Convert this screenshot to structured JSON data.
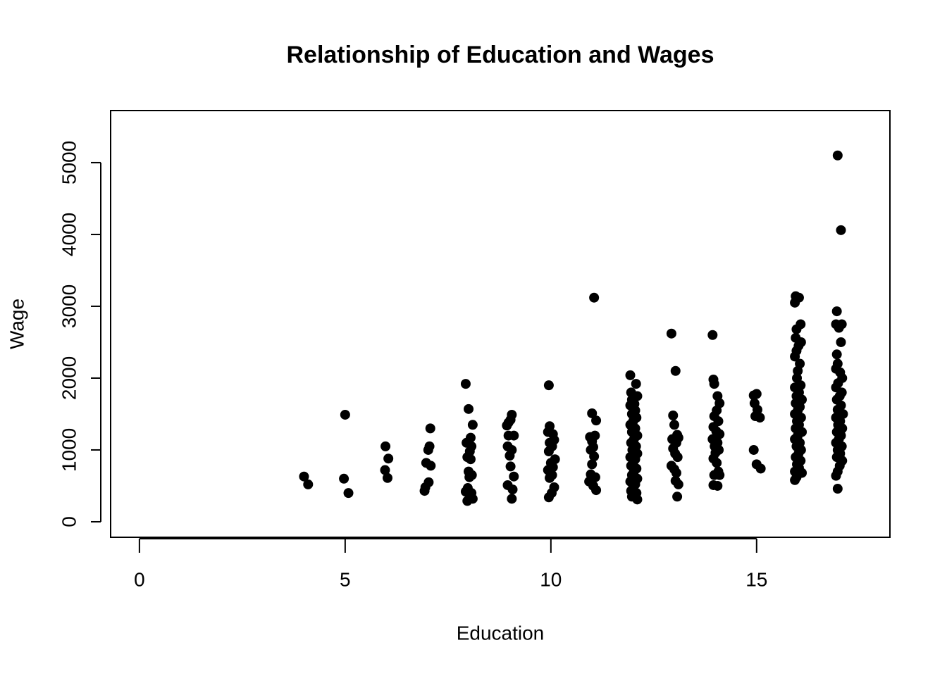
{
  "chart_data": {
    "type": "scatter",
    "title": "Relationship of Education and Wages",
    "x_label": "Education",
    "y_label": "Wage",
    "color": "#000000",
    "xlim": [
      -0.7,
      18.24
    ],
    "ylim": [
      -216,
      5725
    ],
    "xticks": [
      0,
      5,
      10,
      15
    ],
    "yticks": [
      0,
      1000,
      2000,
      3000,
      4000,
      5000
    ],
    "x": [
      4.0,
      4.1,
      5.0,
      4.97,
      5.08,
      5.98,
      6.05,
      5.97,
      6.03,
      7.07,
      7.05,
      7.02,
      6.97,
      7.08,
      7.03,
      6.95,
      6.93,
      7.93,
      8.0,
      8.1,
      8.05,
      7.95,
      8.07,
      8.03,
      7.97,
      8.05,
      8.0,
      8.08,
      8.02,
      7.98,
      7.93,
      8.07,
      8.1,
      7.97,
      9.05,
      9.02,
      8.97,
      8.93,
      9.1,
      8.97,
      8.95,
      9.05,
      9.0,
      9.02,
      9.1,
      8.95,
      9.07,
      9.05,
      9.95,
      9.97,
      10.05,
      9.93,
      10.08,
      9.97,
      10.03,
      9.95,
      10.1,
      10.0,
      10.05,
      9.93,
      10.03,
      9.97,
      10.08,
      10.02,
      9.95,
      11.05,
      11.0,
      11.1,
      11.07,
      10.95,
      11.0,
      11.03,
      10.97,
      11.05,
      11.0,
      10.97,
      11.08,
      10.93,
      11.03,
      11.1,
      11.93,
      12.07,
      11.95,
      12.1,
      11.97,
      12.03,
      11.93,
      12.05,
      11.97,
      12.08,
      12.0,
      11.93,
      12.05,
      11.97,
      12.1,
      12.02,
      11.95,
      12.07,
      11.98,
      12.1,
      11.93,
      12.05,
      12.0,
      11.95,
      12.08,
      12.02,
      11.97,
      12.1,
      11.93,
      12.05,
      12.0,
      11.95,
      12.08,
      11.97,
      12.1,
      12.93,
      13.03,
      12.97,
      13.0,
      13.07,
      12.95,
      13.05,
      13.1,
      12.97,
      13.02,
      13.08,
      12.93,
      13.0,
      13.05,
      13.03,
      13.1,
      13.07,
      13.93,
      13.95,
      13.97,
      14.05,
      14.1,
      14.03,
      13.97,
      14.07,
      13.95,
      14.02,
      14.1,
      13.93,
      14.05,
      13.98,
      14.08,
      14.0,
      13.95,
      14.03,
      14.07,
      13.97,
      14.1,
      13.95,
      14.05,
      14.93,
      15.0,
      14.95,
      15.02,
      14.97,
      15.08,
      14.93,
      15.0,
      15.1,
      15.95,
      16.03,
      15.93,
      16.07,
      15.97,
      15.95,
      16.08,
      16.02,
      15.97,
      15.93,
      16.05,
      16.0,
      15.98,
      16.07,
      15.93,
      16.03,
      15.97,
      16.1,
      15.95,
      16.05,
      16.0,
      15.93,
      16.08,
      15.98,
      16.03,
      15.95,
      16.1,
      16.0,
      15.93,
      16.05,
      15.97,
      16.08,
      16.02,
      15.95,
      16.07,
      15.98,
      16.03,
      15.93,
      16.1,
      15.97,
      15.93,
      16.97,
      17.05,
      16.95,
      16.93,
      17.07,
      17.0,
      17.05,
      16.95,
      16.97,
      16.93,
      17.03,
      17.08,
      16.98,
      16.93,
      17.07,
      17.02,
      16.95,
      17.05,
      16.97,
      17.1,
      16.93,
      17.03,
      16.98,
      17.08,
      16.95,
      17.05,
      17.0,
      16.93,
      17.07,
      16.97,
      17.03,
      16.95,
      17.08,
      17.02,
      16.97,
      16.93,
      16.97
    ],
    "y": [
      630,
      520,
      1490,
      600,
      400,
      1050,
      880,
      720,
      610,
      1300,
      1050,
      1000,
      820,
      780,
      550,
      480,
      430,
      1920,
      1570,
      1350,
      1170,
      1100,
      1050,
      980,
      900,
      870,
      700,
      650,
      620,
      470,
      420,
      400,
      320,
      290,
      1490,
      1420,
      1380,
      1340,
      1200,
      1200,
      1050,
      1000,
      920,
      770,
      630,
      510,
      450,
      320,
      1900,
      1330,
      1220,
      1250,
      1140,
      1100,
      1050,
      980,
      870,
      820,
      760,
      720,
      650,
      610,
      480,
      400,
      340,
      3120,
      1510,
      1410,
      1200,
      1180,
      1120,
      1040,
      1000,
      910,
      800,
      660,
      620,
      560,
      500,
      440,
      2040,
      1920,
      1800,
      1750,
      1700,
      1640,
      1620,
      1550,
      1500,
      1450,
      1400,
      1350,
      1300,
      1250,
      1200,
      1150,
      1100,
      1050,
      1000,
      950,
      900,
      870,
      820,
      780,
      740,
      700,
      650,
      600,
      560,
      520,
      480,
      430,
      400,
      350,
      310,
      2620,
      2100,
      1480,
      1350,
      1210,
      1150,
      1100,
      1170,
      1020,
      950,
      900,
      780,
      730,
      680,
      570,
      520,
      350,
      2600,
      1980,
      1920,
      1750,
      1650,
      1550,
      1470,
      1400,
      1320,
      1260,
      1220,
      1150,
      1100,
      1050,
      1000,
      960,
      880,
      820,
      700,
      650,
      650,
      510,
      500,
      1760,
      1780,
      1650,
      1560,
      1470,
      1450,
      1000,
      800,
      740,
      3140,
      3120,
      3050,
      2750,
      2680,
      2560,
      2500,
      2450,
      2380,
      2300,
      2200,
      2100,
      2000,
      1900,
      1870,
      1800,
      1750,
      1700,
      1650,
      1600,
      1550,
      1500,
      1450,
      1400,
      1350,
      1300,
      1250,
      1200,
      1150,
      1100,
      1050,
      1000,
      950,
      900,
      850,
      800,
      750,
      700,
      680,
      620,
      580,
      5100,
      4060,
      2930,
      2750,
      2750,
      2700,
      2500,
      2330,
      2200,
      2130,
      2080,
      2000,
      1930,
      1870,
      1800,
      1750,
      1700,
      1620,
      1560,
      1500,
      1450,
      1400,
      1350,
      1300,
      1250,
      1200,
      1150,
      1100,
      1050,
      1000,
      950,
      900,
      850,
      780,
      700,
      640,
      460
    ]
  }
}
